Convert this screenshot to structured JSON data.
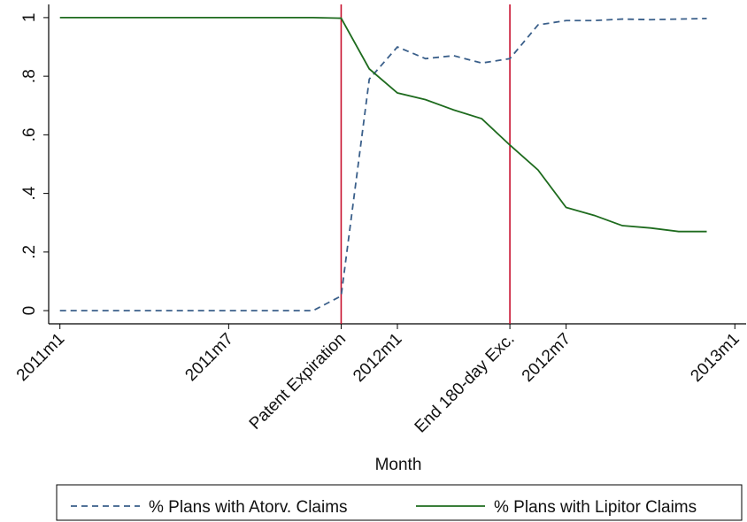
{
  "chart_data": {
    "type": "line",
    "x_label": "Month",
    "x": [
      0,
      1,
      2,
      3,
      4,
      5,
      6,
      7,
      8,
      9,
      10,
      11,
      12,
      13,
      14,
      15,
      16,
      17,
      18,
      19,
      20,
      21,
      22,
      23
    ],
    "series": [
      {
        "name": "% Plans with Atorv. Claims",
        "color": "#3a5f8a",
        "dash": true,
        "values": [
          0,
          0,
          0,
          0,
          0,
          0,
          0,
          0,
          0,
          0,
          0.05,
          0.79,
          0.9,
          0.86,
          0.87,
          0.845,
          0.86,
          0.975,
          0.99,
          0.99,
          0.995,
          0.993,
          0.995,
          0.997
        ]
      },
      {
        "name": "% Plans with Lipitor Claims",
        "color": "#1e6b1e",
        "dash": false,
        "values": [
          1,
          1,
          1,
          1,
          1,
          1,
          1,
          1,
          1,
          1,
          0.998,
          0.825,
          0.743,
          0.72,
          0.685,
          0.655,
          0.565,
          0.48,
          0.352,
          0.325,
          0.29,
          0.282,
          0.27,
          0.27
        ]
      }
    ],
    "xlim": [
      -0.4,
      24.4
    ],
    "ylim": [
      -0.045,
      1.045
    ],
    "xticks": [
      {
        "value": 0,
        "label": "2011m1"
      },
      {
        "value": 6,
        "label": "2011m7"
      },
      {
        "value": 10,
        "label": "Patent Expiration"
      },
      {
        "value": 12,
        "label": "2012m1"
      },
      {
        "value": 16,
        "label": "End 180-day Exc."
      },
      {
        "value": 18,
        "label": "2012m7"
      },
      {
        "value": 24,
        "label": "2013m1"
      }
    ],
    "yticks": [
      0,
      {
        "value": 0.2,
        "label": ".2"
      },
      {
        "value": 0.4,
        "label": ".4"
      },
      {
        "value": 0.6,
        "label": ".6"
      },
      {
        "value": 0.8,
        "label": ".8"
      },
      1
    ],
    "vlines": [
      10,
      16
    ],
    "vline_color": "#c8102e",
    "legend": "bottom"
  }
}
